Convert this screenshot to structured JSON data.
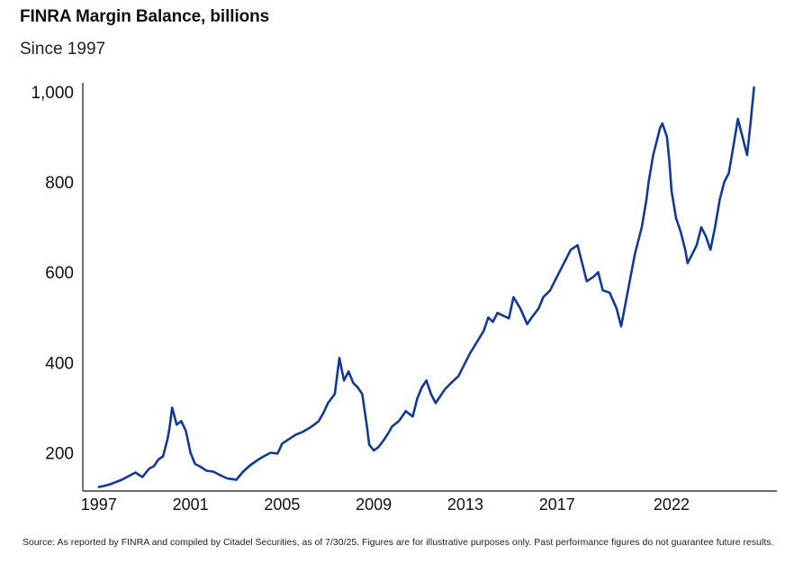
{
  "header": {
    "title": "FINRA Margin Balance, billions",
    "subtitle": "Since 1997"
  },
  "footer": {
    "source": "Source: As reported by FINRA and compiled by Citadel Securities, as of 7/30/25. Figures are for illustrative purposes only. Past performance figures do not guarantee future results."
  },
  "chart_data": {
    "type": "line",
    "title": "FINRA Margin Balance, billions",
    "subtitle": "Since 1997",
    "xlabel": "",
    "ylabel": "",
    "x_ticks": [
      1997,
      2001,
      2005,
      2009,
      2013,
      2017,
      2022
    ],
    "x_tick_labels": [
      "1997",
      "2001",
      "2005",
      "2009",
      "2013",
      "2017",
      "2022"
    ],
    "y_ticks": [
      200,
      400,
      600,
      800,
      1000
    ],
    "y_tick_labels": [
      "200",
      "400",
      "600",
      "800",
      "1,000"
    ],
    "xlim": [
      1996.3,
      2026.6
    ],
    "ylim": [
      115,
      1020
    ],
    "grid": false,
    "line_color": "#123a96",
    "series": [
      {
        "x": [
          1997.0,
          1997.2,
          1997.5,
          1997.8,
          1998.0,
          1998.3,
          1998.6,
          1998.9,
          1999.2,
          1999.4,
          1999.6,
          1999.8,
          2000.0,
          2000.1,
          2000.2,
          2000.4,
          2000.6,
          2000.8,
          2001.0,
          2001.2,
          2001.4,
          2001.7,
          2002.0,
          2002.3,
          2002.6,
          2003.0,
          2003.3,
          2003.6,
          2004.0,
          2004.2,
          2004.5,
          2004.8,
          2005.0,
          2005.3,
          2005.6,
          2005.9,
          2006.2,
          2006.4,
          2006.6,
          2006.8,
          2007.0,
          2007.3,
          2007.5,
          2007.7,
          2007.9,
          2008.1,
          2008.3,
          2008.5,
          2008.7,
          2008.8,
          2009.0,
          2009.2,
          2009.4,
          2009.6,
          2009.8,
          2010.1,
          2010.4,
          2010.7,
          2010.9,
          2011.1,
          2011.3,
          2011.5,
          2011.7,
          2011.9,
          2012.1,
          2012.4,
          2012.7,
          2012.9,
          2013.2,
          2013.5,
          2013.8,
          2014.0,
          2014.2,
          2014.4,
          2014.6,
          2014.9,
          2015.1,
          2015.4,
          2015.7,
          2015.9,
          2016.2,
          2016.4,
          2016.7,
          2017.0,
          2017.3,
          2017.6,
          2017.9,
          2018.1,
          2018.3,
          2018.6,
          2018.8,
          2019.0,
          2019.3,
          2019.6,
          2019.8,
          2020.1,
          2020.4,
          2020.7,
          2020.9,
          2021.0,
          2021.2,
          2021.4,
          2021.5,
          2021.6,
          2021.8,
          2021.9,
          2022.0,
          2022.2,
          2022.4,
          2022.6,
          2022.7,
          2022.9,
          2023.1,
          2023.3,
          2023.5,
          2023.7,
          2023.9,
          2024.1,
          2024.3,
          2024.5,
          2024.7,
          2024.9,
          2025.1,
          2025.3,
          2025.45,
          2025.6
        ],
        "values": [
          124,
          126,
          130,
          136,
          140,
          148,
          156,
          146,
          165,
          170,
          185,
          192,
          230,
          260,
          300,
          262,
          270,
          248,
          200,
          175,
          170,
          160,
          158,
          150,
          143,
          140,
          158,
          172,
          186,
          192,
          200,
          198,
          220,
          230,
          240,
          246,
          255,
          262,
          270,
          288,
          310,
          330,
          410,
          360,
          380,
          355,
          345,
          330,
          260,
          218,
          205,
          212,
          225,
          240,
          258,
          270,
          292,
          280,
          320,
          345,
          360,
          330,
          310,
          325,
          340,
          356,
          370,
          390,
          420,
          445,
          470,
          500,
          490,
          510,
          505,
          498,
          545,
          520,
          485,
          500,
          520,
          545,
          560,
          590,
          620,
          650,
          660,
          620,
          580,
          590,
          600,
          560,
          555,
          520,
          480,
          560,
          640,
          700,
          760,
          800,
          860,
          900,
          920,
          930,
          900,
          850,
          780,
          720,
          690,
          650,
          620,
          640,
          660,
          700,
          680,
          650,
          700,
          760,
          800,
          820,
          880,
          940,
          900,
          860,
          930,
          1010
        ]
      }
    ]
  }
}
